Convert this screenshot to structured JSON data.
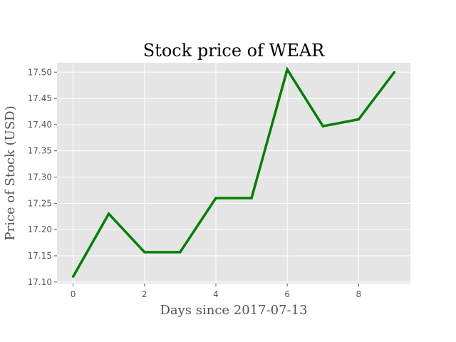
{
  "chart_data": {
    "type": "line",
    "title": "Stock price of WEAR",
    "xlabel": "Days since 2017-07-13",
    "ylabel": "Price of Stock (USD)",
    "x": [
      0,
      1,
      2,
      3,
      4,
      5,
      6,
      7,
      8,
      9
    ],
    "series": [
      {
        "values": [
          17.11,
          17.23,
          17.157,
          17.157,
          17.26,
          17.26,
          17.505,
          17.397,
          17.41,
          17.5
        ]
      }
    ],
    "xlim": [
      -0.45,
      9.45
    ],
    "ylim": [
      17.097,
      17.518
    ],
    "xticks": [
      0,
      2,
      4,
      6,
      8
    ],
    "xtick_labels": [
      "0",
      "2",
      "4",
      "6",
      "8"
    ],
    "yticks": [
      17.1,
      17.15,
      17.2,
      17.25,
      17.3,
      17.35,
      17.4,
      17.45,
      17.5
    ],
    "ytick_labels": [
      "17.10",
      "17.15",
      "17.20",
      "17.25",
      "17.30",
      "17.35",
      "17.40",
      "17.45",
      "17.50"
    ],
    "grid": true,
    "legend": "none",
    "colors": {
      "line": "#008000",
      "plot_background": "#e5e5e5",
      "grid": "#ffffff",
      "tick": "#555555",
      "figure_background": "#ffffff"
    }
  }
}
